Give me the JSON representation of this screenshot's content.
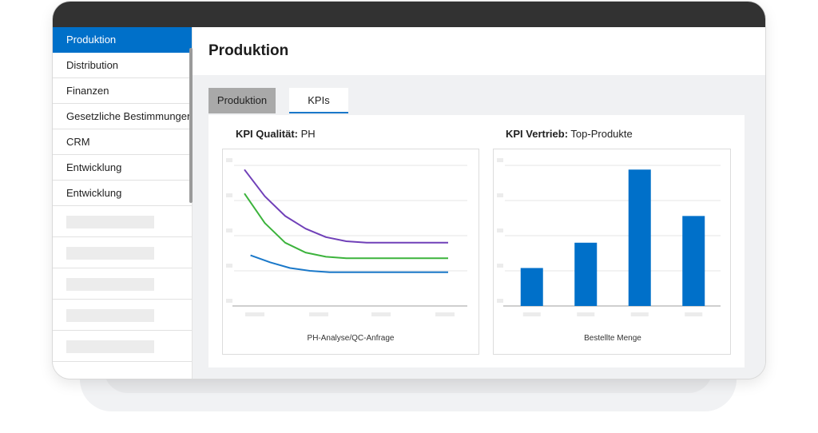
{
  "sidebar": {
    "items": [
      {
        "label": "Produktion",
        "active": true
      },
      {
        "label": "Distribution"
      },
      {
        "label": "Finanzen"
      },
      {
        "label": "Gesetzliche Bestimmungen"
      },
      {
        "label": "CRM"
      },
      {
        "label": "Entwicklung"
      },
      {
        "label": "Entwicklung"
      }
    ]
  },
  "header": {
    "title": "Produktion"
  },
  "tabs": [
    {
      "label": "Produktion",
      "selected": false
    },
    {
      "label": "KPIs",
      "selected": true
    }
  ],
  "kpis": [
    {
      "title_bold": "KPI Qualität:",
      "title_rest": "PH"
    },
    {
      "title_bold": "KPI Vertrieb:",
      "title_rest": "Top-Produkte"
    }
  ],
  "colors": {
    "accent": "#0070c9",
    "tab_inactive": "#a9a9a9",
    "line_purple": "#7040b8",
    "line_green": "#3cb33c",
    "line_blue": "#1a78c9",
    "bar": "#0070c9"
  },
  "chart_data": [
    {
      "type": "line",
      "xlabel": "PH-Analyse/QC-Anfrage",
      "ylim": [
        0,
        100
      ],
      "tick_labels_visible": false,
      "grid": true,
      "x": [
        0,
        1,
        2,
        3,
        4,
        5,
        6,
        7,
        8,
        9,
        10
      ],
      "series": [
        {
          "color": "#7040b8",
          "values": [
            97,
            78,
            64,
            55,
            49,
            46,
            45,
            45,
            45,
            45,
            45
          ]
        },
        {
          "color": "#3cb33c",
          "values": [
            80,
            59,
            45,
            38,
            35,
            34,
            34,
            34,
            34,
            34,
            34
          ]
        },
        {
          "color": "#1a78c9",
          "values": [
            36,
            31,
            27,
            25,
            24,
            24,
            24,
            24,
            24,
            24,
            24
          ]
        }
      ]
    },
    {
      "type": "bar",
      "xlabel": "Bestellte Menge",
      "ylim": [
        0,
        100
      ],
      "tick_labels_visible": false,
      "grid": true,
      "categories": [
        "",
        "",
        "",
        ""
      ],
      "values": [
        27,
        45,
        97,
        64
      ]
    }
  ]
}
